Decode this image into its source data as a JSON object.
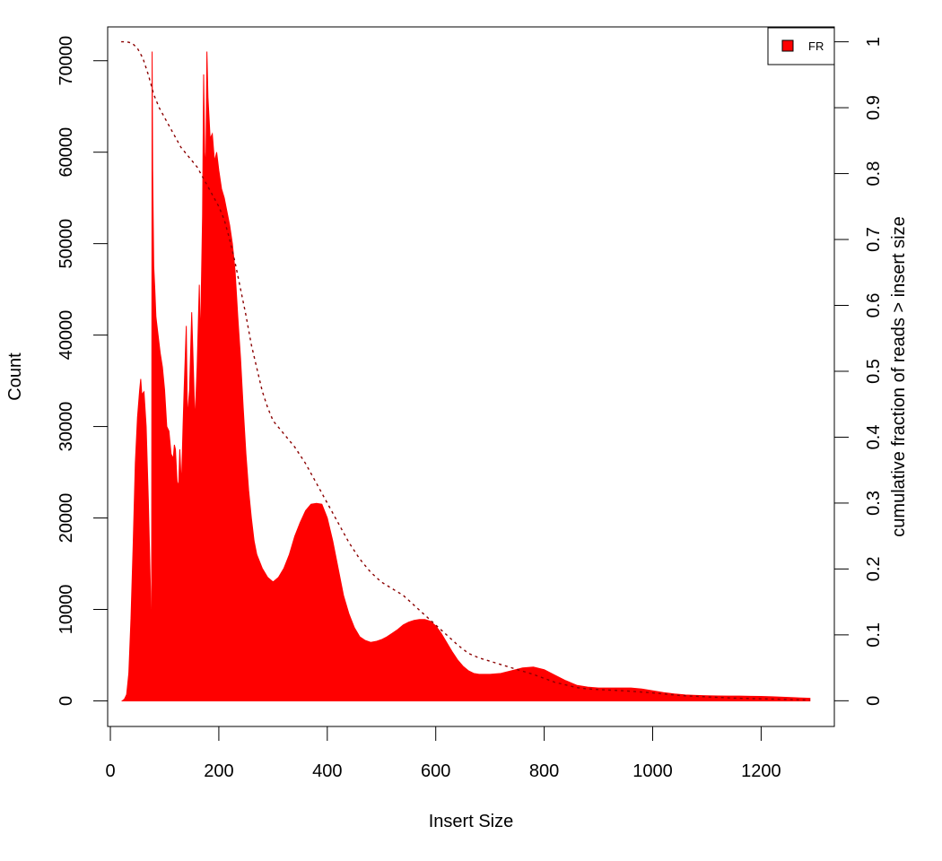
{
  "chart_data": {
    "type": "area",
    "xlabel": "Insert Size",
    "ylabel": "Count",
    "y2label": "cumulative fraction of reads > insert size",
    "xlim": [
      -5,
      1335
    ],
    "ylim": [
      -2800,
      73700
    ],
    "y2lim": [
      -0.039,
      1.0226
    ],
    "x_ticks": [
      "0",
      "200",
      "400",
      "600",
      "800",
      "1000",
      "1200"
    ],
    "y_ticks": [
      "0",
      "10000",
      "20000",
      "30000",
      "40000",
      "50000",
      "60000",
      "70000"
    ],
    "y2_ticks": [
      "0",
      "0.1",
      "0.2",
      "0.3",
      "0.4",
      "0.5",
      "0.6",
      "0.7",
      "0.8",
      "0.9",
      "1"
    ],
    "legend": {
      "position": "top-right",
      "entries": [
        "FR"
      ]
    },
    "colors": {
      "histogram": "#ff0000",
      "cumulative": "#8b0000"
    },
    "series": [
      {
        "name": "FR",
        "type": "area",
        "points": [
          [
            22,
            0
          ],
          [
            26,
            200
          ],
          [
            30,
            700
          ],
          [
            34,
            3000
          ],
          [
            38,
            9000
          ],
          [
            42,
            17000
          ],
          [
            46,
            26000
          ],
          [
            50,
            31000
          ],
          [
            54,
            34000
          ],
          [
            56,
            35200
          ],
          [
            58,
            33500
          ],
          [
            62,
            33800
          ],
          [
            66,
            30000
          ],
          [
            70,
            22000
          ],
          [
            74,
            12000
          ],
          [
            76,
            3000
          ],
          [
            77,
            71000
          ],
          [
            78,
            58000
          ],
          [
            80,
            47500
          ],
          [
            82,
            45000
          ],
          [
            84,
            42000
          ],
          [
            88,
            40000
          ],
          [
            92,
            38000
          ],
          [
            96,
            36500
          ],
          [
            100,
            34000
          ],
          [
            104,
            30000
          ],
          [
            108,
            29500
          ],
          [
            112,
            27000
          ],
          [
            116,
            26500
          ],
          [
            118,
            28000
          ],
          [
            120,
            27500
          ],
          [
            123,
            24000
          ],
          [
            126,
            23500
          ],
          [
            128,
            27500
          ],
          [
            131,
            23500
          ],
          [
            134,
            30000
          ],
          [
            136,
            34000
          ],
          [
            138,
            37500
          ],
          [
            140,
            41000
          ],
          [
            142,
            31000
          ],
          [
            146,
            34000
          ],
          [
            150,
            42500
          ],
          [
            152,
            38500
          ],
          [
            156,
            30500
          ],
          [
            160,
            36500
          ],
          [
            164,
            45500
          ],
          [
            166,
            39000
          ],
          [
            170,
            53000
          ],
          [
            172,
            68500
          ],
          [
            174,
            60000
          ],
          [
            176,
            58000
          ],
          [
            178,
            71000
          ],
          [
            180,
            66000
          ],
          [
            184,
            61500
          ],
          [
            188,
            62000
          ],
          [
            192,
            59000
          ],
          [
            196,
            60000
          ],
          [
            200,
            58000
          ],
          [
            205,
            56000
          ],
          [
            210,
            55000
          ],
          [
            215,
            53500
          ],
          [
            220,
            52000
          ],
          [
            225,
            50000
          ],
          [
            230,
            47000
          ],
          [
            235,
            42000
          ],
          [
            240,
            37500
          ],
          [
            245,
            32000
          ],
          [
            250,
            27000
          ],
          [
            255,
            23000
          ],
          [
            260,
            20000
          ],
          [
            265,
            17500
          ],
          [
            270,
            16000
          ],
          [
            280,
            14500
          ],
          [
            290,
            13500
          ],
          [
            300,
            13000
          ],
          [
            310,
            13500
          ],
          [
            320,
            14500
          ],
          [
            330,
            16000
          ],
          [
            340,
            18000
          ],
          [
            350,
            19500
          ],
          [
            360,
            20800
          ],
          [
            370,
            21500
          ],
          [
            380,
            21600
          ],
          [
            390,
            21500
          ],
          [
            400,
            20000
          ],
          [
            410,
            17500
          ],
          [
            420,
            14500
          ],
          [
            430,
            11500
          ],
          [
            440,
            9500
          ],
          [
            450,
            8000
          ],
          [
            460,
            7000
          ],
          [
            470,
            6600
          ],
          [
            480,
            6400
          ],
          [
            490,
            6500
          ],
          [
            500,
            6700
          ],
          [
            510,
            7000
          ],
          [
            520,
            7400
          ],
          [
            530,
            7800
          ],
          [
            540,
            8300
          ],
          [
            550,
            8600
          ],
          [
            560,
            8800
          ],
          [
            570,
            8900
          ],
          [
            580,
            8900
          ],
          [
            590,
            8700
          ],
          [
            600,
            8200
          ],
          [
            610,
            7400
          ],
          [
            620,
            6400
          ],
          [
            630,
            5400
          ],
          [
            640,
            4500
          ],
          [
            650,
            3800
          ],
          [
            660,
            3300
          ],
          [
            670,
            3000
          ],
          [
            680,
            2900
          ],
          [
            700,
            2900
          ],
          [
            720,
            3000
          ],
          [
            740,
            3300
          ],
          [
            760,
            3600
          ],
          [
            780,
            3700
          ],
          [
            800,
            3400
          ],
          [
            820,
            2800
          ],
          [
            840,
            2200
          ],
          [
            860,
            1700
          ],
          [
            880,
            1500
          ],
          [
            900,
            1400
          ],
          [
            920,
            1400
          ],
          [
            940,
            1400
          ],
          [
            960,
            1400
          ],
          [
            980,
            1300
          ],
          [
            1000,
            1100
          ],
          [
            1020,
            900
          ],
          [
            1040,
            750
          ],
          [
            1060,
            650
          ],
          [
            1080,
            600
          ],
          [
            1100,
            560
          ],
          [
            1120,
            540
          ],
          [
            1140,
            520
          ],
          [
            1160,
            520
          ],
          [
            1180,
            500
          ],
          [
            1200,
            480
          ],
          [
            1220,
            450
          ],
          [
            1240,
            400
          ],
          [
            1260,
            350
          ],
          [
            1280,
            300
          ],
          [
            1290,
            280
          ]
        ]
      },
      {
        "name": "cumulative",
        "type": "line",
        "axis": "y2",
        "points": [
          [
            20,
            1.0
          ],
          [
            30,
            1.0
          ],
          [
            40,
            0.998
          ],
          [
            50,
            0.99
          ],
          [
            60,
            0.975
          ],
          [
            70,
            0.95
          ],
          [
            80,
            0.92
          ],
          [
            90,
            0.9
          ],
          [
            100,
            0.885
          ],
          [
            110,
            0.87
          ],
          [
            120,
            0.855
          ],
          [
            130,
            0.84
          ],
          [
            140,
            0.83
          ],
          [
            150,
            0.82
          ],
          [
            160,
            0.81
          ],
          [
            170,
            0.795
          ],
          [
            180,
            0.78
          ],
          [
            190,
            0.765
          ],
          [
            200,
            0.75
          ],
          [
            210,
            0.73
          ],
          [
            220,
            0.7
          ],
          [
            230,
            0.665
          ],
          [
            240,
            0.625
          ],
          [
            250,
            0.585
          ],
          [
            260,
            0.54
          ],
          [
            270,
            0.505
          ],
          [
            280,
            0.47
          ],
          [
            290,
            0.445
          ],
          [
            300,
            0.425
          ],
          [
            320,
            0.405
          ],
          [
            340,
            0.385
          ],
          [
            360,
            0.36
          ],
          [
            380,
            0.33
          ],
          [
            400,
            0.3
          ],
          [
            420,
            0.27
          ],
          [
            440,
            0.24
          ],
          [
            460,
            0.215
          ],
          [
            480,
            0.195
          ],
          [
            500,
            0.18
          ],
          [
            520,
            0.17
          ],
          [
            540,
            0.16
          ],
          [
            560,
            0.145
          ],
          [
            580,
            0.13
          ],
          [
            600,
            0.115
          ],
          [
            620,
            0.1
          ],
          [
            640,
            0.085
          ],
          [
            660,
            0.072
          ],
          [
            680,
            0.065
          ],
          [
            700,
            0.06
          ],
          [
            720,
            0.055
          ],
          [
            740,
            0.05
          ],
          [
            760,
            0.045
          ],
          [
            780,
            0.04
          ],
          [
            800,
            0.034
          ],
          [
            820,
            0.028
          ],
          [
            840,
            0.024
          ],
          [
            860,
            0.02
          ],
          [
            880,
            0.018
          ],
          [
            900,
            0.017
          ],
          [
            950,
            0.015
          ],
          [
            1000,
            0.012
          ],
          [
            1050,
            0.008
          ],
          [
            1100,
            0.006
          ],
          [
            1150,
            0.004
          ],
          [
            1200,
            0.003
          ],
          [
            1250,
            0.002
          ],
          [
            1290,
            0.001
          ]
        ]
      }
    ]
  }
}
